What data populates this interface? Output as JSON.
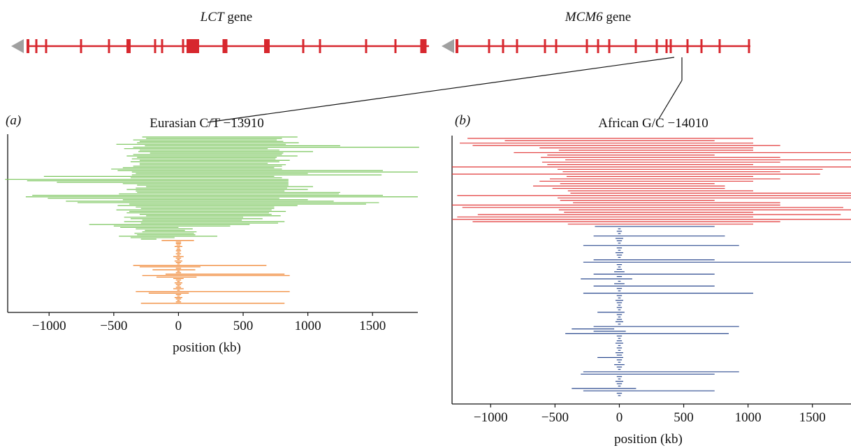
{
  "genes": [
    {
      "name": "LCT",
      "suffix": "gene"
    },
    {
      "name": "MCM6",
      "suffix": "gene"
    }
  ],
  "colors": {
    "gene": "#d7272e",
    "gene_arrow": "#a0a0a0",
    "eurasian_derived": "#7ac55c",
    "eurasian_ancestral": "#ef7f26",
    "african_derived": "#e23a3a",
    "african_ancestral": "#2b4a8f",
    "axis": "#111111"
  },
  "chart_data": [
    {
      "type": "line",
      "panel_label": "(a)",
      "title": "Eurasian C/T −13910",
      "xlabel": "position (kb)",
      "ylabel": "",
      "xlim": [
        -1320,
        1850
      ],
      "xticks": [
        -1000,
        -500,
        0,
        500,
        1000,
        1500
      ],
      "tick_labels": [
        "−1000",
        "−500",
        "0",
        "500",
        "1000",
        "1500"
      ],
      "grid": false,
      "description_of_marks": "Each horizontal line is one haplotype, spanning left to right in kb around the variant at 0",
      "series": [
        {
          "name": "",
          "color_key": "eurasian_derived",
          "segments": [
            [
              -280,
              920
            ],
            [
              -250,
              800
            ],
            [
              -350,
              760
            ],
            [
              -300,
              810
            ],
            [
              -320,
              930
            ],
            [
              -480,
              830
            ],
            [
              -260,
              1250
            ],
            [
              -350,
              1860
            ],
            [
              -420,
              690
            ],
            [
              -300,
              780
            ],
            [
              -310,
              1040
            ],
            [
              -220,
              810
            ],
            [
              -350,
              800
            ],
            [
              -400,
              920
            ],
            [
              -320,
              760
            ],
            [
              -360,
              750
            ],
            [
              -300,
              860
            ],
            [
              -370,
              780
            ],
            [
              -300,
              690
            ],
            [
              -300,
              830
            ],
            [
              -350,
              800
            ],
            [
              -430,
              740
            ],
            [
              -520,
              800
            ],
            [
              -470,
              1580
            ],
            [
              -360,
              1850
            ],
            [
              -330,
              1000
            ],
            [
              -360,
              1570
            ],
            [
              -1040,
              740
            ],
            [
              -370,
              800
            ],
            [
              -1340,
              850
            ],
            [
              -1170,
              850
            ],
            [
              -940,
              850
            ],
            [
              -430,
              850
            ],
            [
              -320,
              850
            ],
            [
              -250,
              1040
            ],
            [
              -330,
              840
            ],
            [
              -400,
              1000
            ],
            [
              -330,
              820
            ],
            [
              -320,
              1250
            ],
            [
              -460,
              1240
            ],
            [
              -1130,
              1580
            ],
            [
              -1180,
              1850
            ],
            [
              -1010,
              780
            ],
            [
              -430,
              1000
            ],
            [
              -870,
              1200
            ],
            [
              -780,
              1550
            ],
            [
              -380,
              1450
            ],
            [
              -470,
              920
            ],
            [
              -330,
              740
            ],
            [
              -290,
              740
            ],
            [
              -480,
              720
            ],
            [
              -380,
              830
            ],
            [
              -400,
              700
            ],
            [
              -300,
              720
            ],
            [
              -250,
              790
            ],
            [
              -420,
              500
            ],
            [
              -370,
              650
            ],
            [
              -280,
              490
            ],
            [
              -420,
              820
            ],
            [
              -290,
              770
            ],
            [
              -690,
              550
            ],
            [
              -500,
              400
            ],
            [
              -450,
              0
            ],
            [
              -330,
              110
            ],
            [
              -260,
              50
            ],
            [
              -280,
              140
            ],
            [
              -340,
              120
            ],
            [
              -320,
              130
            ],
            [
              -460,
              300
            ],
            [
              -370,
              -30
            ],
            [
              -290,
              -170
            ]
          ]
        },
        {
          "name": "",
          "color_key": "eurasian_ancestral",
          "segments": [
            [
              -130,
              120
            ],
            [
              -20,
              20
            ],
            [
              -20,
              20
            ],
            [
              -15,
              15
            ],
            [
              -30,
              30
            ],
            [
              -10,
              10
            ],
            [
              -15,
              15
            ],
            [
              -20,
              20
            ],
            [
              -10,
              10
            ],
            [
              -20,
              20
            ],
            [
              -10,
              10
            ],
            [
              -40,
              40
            ],
            [
              -20,
              20
            ],
            [
              -10,
              10
            ],
            [
              -30,
              30
            ],
            [
              -20,
              20
            ],
            [
              -10,
              10
            ],
            [
              -350,
              680
            ],
            [
              -300,
              170
            ],
            [
              -20,
              20
            ],
            [
              -200,
              130
            ],
            [
              -10,
              10
            ],
            [
              -20,
              20
            ],
            [
              -100,
              820
            ],
            [
              -280,
              860
            ],
            [
              -170,
              140
            ],
            [
              -40,
              40
            ],
            [
              -20,
              20
            ],
            [
              -10,
              10
            ],
            [
              -30,
              30
            ],
            [
              -20,
              20
            ],
            [
              -10,
              10
            ],
            [
              -20,
              20
            ],
            [
              -40,
              40
            ],
            [
              -10,
              10
            ],
            [
              -330,
              860
            ],
            [
              -230,
              80
            ],
            [
              -20,
              20
            ],
            [
              -10,
              10
            ],
            [
              -30,
              30
            ],
            [
              -20,
              20
            ],
            [
              -10,
              10
            ],
            [
              -20,
              20
            ],
            [
              -290,
              820
            ]
          ]
        }
      ]
    },
    {
      "type": "line",
      "panel_label": "(b)",
      "title": "African G/C −14010",
      "xlabel": "position (kb)",
      "ylabel": "",
      "xlim": [
        -1300,
        1800
      ],
      "xticks": [
        -1000,
        -500,
        0,
        500,
        1000,
        1500
      ],
      "tick_labels": [
        "−1000",
        "−500",
        "0",
        "500",
        "1000",
        "1500"
      ],
      "grid": false,
      "description_of_marks": "Each horizontal line is one haplotype, spanning left to right in kb around the variant at 0",
      "series": [
        {
          "name": "",
          "color_key": "african_derived",
          "segments": [
            [
              -1180,
              1040
            ],
            [
              -890,
              740
            ],
            [
              -1240,
              1040
            ],
            [
              -1140,
              1250
            ],
            [
              -620,
              1040
            ],
            [
              -470,
              1040
            ],
            [
              -820,
              1800
            ],
            [
              -560,
              740
            ],
            [
              -610,
              1250
            ],
            [
              -420,
              1800
            ],
            [
              -600,
              1250
            ],
            [
              -560,
              1040
            ],
            [
              -1300,
              1800
            ],
            [
              -480,
              1580
            ],
            [
              -440,
              1250
            ],
            [
              -1300,
              1560
            ],
            [
              -410,
              1040
            ],
            [
              -540,
              1250
            ],
            [
              -620,
              1040
            ],
            [
              -460,
              740
            ],
            [
              -670,
              820
            ],
            [
              -520,
              820
            ],
            [
              -400,
              1040
            ],
            [
              -380,
              1800
            ],
            [
              -1260,
              1800
            ],
            [
              -480,
              1800
            ],
            [
              -460,
              740
            ],
            [
              -360,
              1250
            ],
            [
              -1300,
              1250
            ],
            [
              -1220,
              1740
            ],
            [
              -470,
              1800
            ],
            [
              -430,
              1040
            ],
            [
              -1100,
              1720
            ],
            [
              -1260,
              1040
            ],
            [
              -1300,
              1800
            ],
            [
              -1140,
              1250
            ],
            [
              -400,
              1040
            ]
          ]
        },
        {
          "name": "",
          "color_key": "african_ancestral",
          "segments": [
            [
              -190,
              740
            ],
            [
              -10,
              10
            ],
            [
              -20,
              20
            ],
            [
              -10,
              10
            ],
            [
              -200,
              820
            ],
            [
              -30,
              30
            ],
            [
              -20,
              20
            ],
            [
              -10,
              10
            ],
            [
              -280,
              930
            ],
            [
              -20,
              20
            ],
            [
              -10,
              10
            ],
            [
              -30,
              30
            ],
            [
              -20,
              20
            ],
            [
              -10,
              10
            ],
            [
              -200,
              740
            ],
            [
              -280,
              1800
            ],
            [
              -20,
              20
            ],
            [
              -10,
              10
            ],
            [
              -20,
              20
            ],
            [
              -40,
              40
            ],
            [
              -200,
              740
            ],
            [
              -20,
              20
            ],
            [
              -300,
              100
            ],
            [
              -10,
              10
            ],
            [
              -40,
              40
            ],
            [
              -200,
              740
            ],
            [
              -20,
              20
            ],
            [
              -10,
              10
            ],
            [
              -280,
              1040
            ],
            [
              -20,
              20
            ],
            [
              -10,
              10
            ],
            [
              -30,
              30
            ],
            [
              -20,
              20
            ],
            [
              -10,
              10
            ],
            [
              -20,
              20
            ],
            [
              -10,
              10
            ],
            [
              -170,
              40
            ],
            [
              -20,
              20
            ],
            [
              -10,
              10
            ],
            [
              -20,
              20
            ],
            [
              -30,
              30
            ],
            [
              -10,
              10
            ],
            [
              -200,
              930
            ],
            [
              -370,
              -40
            ],
            [
              -200,
              50
            ],
            [
              -420,
              850
            ],
            [
              -20,
              20
            ],
            [
              -10,
              10
            ],
            [
              -20,
              20
            ],
            [
              -30,
              30
            ],
            [
              -10,
              10
            ],
            [
              -20,
              20
            ],
            [
              -10,
              10
            ],
            [
              -30,
              30
            ],
            [
              -20,
              20
            ],
            [
              -170,
              30
            ],
            [
              -20,
              20
            ],
            [
              -10,
              10
            ],
            [
              -40,
              40
            ],
            [
              -20,
              20
            ],
            [
              -10,
              10
            ],
            [
              -280,
              930
            ],
            [
              -300,
              740
            ],
            [
              -20,
              20
            ],
            [
              -10,
              10
            ],
            [
              -30,
              30
            ],
            [
              -20,
              20
            ],
            [
              -10,
              10
            ],
            [
              -370,
              130
            ],
            [
              -280,
              740
            ],
            [
              -20,
              20
            ],
            [
              -10,
              10
            ]
          ]
        }
      ]
    }
  ]
}
